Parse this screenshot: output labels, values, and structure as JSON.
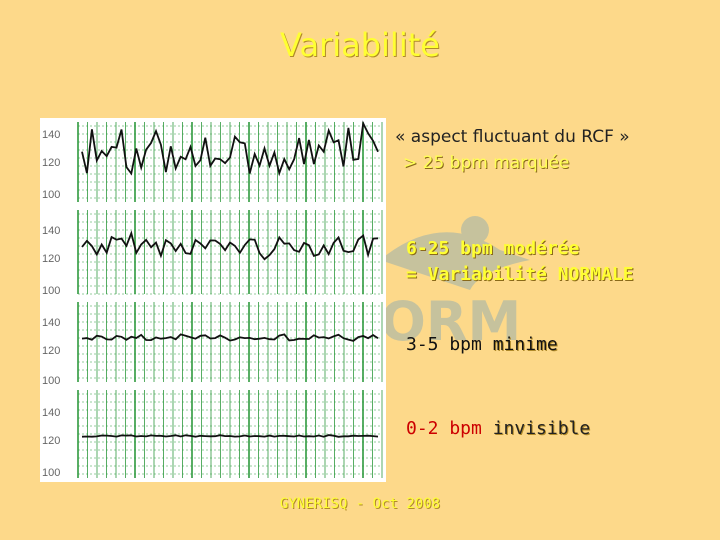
{
  "title": "Variabilité",
  "labels": {
    "aspect_line1": "« aspect fluctuant du RCF »",
    "aspect_line2": "> 25 bpm marquée",
    "moderate_line1": "6-25 bpm modérée",
    "moderate_line2": "= Variabilité NORMALE",
    "minimal_prefix": "3-5 bpm ",
    "minimal_word": "minime",
    "absent_prefix": "0-2 bpm ",
    "absent_word": "invisible"
  },
  "footer": "GYNERISQ - Oct 2008",
  "strips": [
    {
      "ticks": [
        "140",
        "120",
        "100"
      ],
      "amplitude_bpm": 30,
      "variability": "marquée"
    },
    {
      "ticks": [
        "140",
        "120",
        "100"
      ],
      "amplitude_bpm": 15,
      "variability": "modérée"
    },
    {
      "ticks": [
        "140",
        "120",
        "100"
      ],
      "amplitude_bpm": 4,
      "variability": "minime"
    },
    {
      "ticks": [
        "140",
        "120",
        "100"
      ],
      "amplitude_bpm": 1,
      "variability": "invisible"
    }
  ],
  "colors": {
    "background": "#fdd98a",
    "grid": "#2e9a3e",
    "trace": "#111111",
    "title": "#ffff33"
  }
}
